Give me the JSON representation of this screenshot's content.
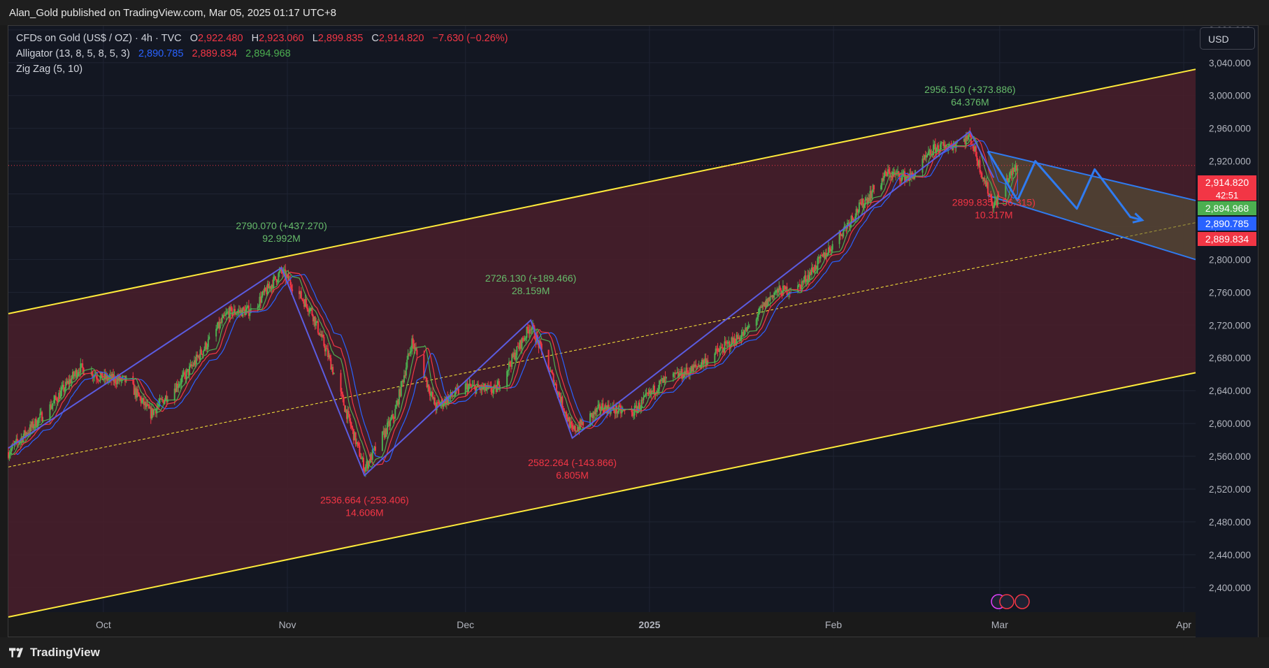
{
  "header": {
    "publisher": "Alan_Gold published on TradingView.com, Mar 05, 2025 01:17 UTC+8"
  },
  "legend": {
    "symbol": "CFDs on Gold (US$ / OZ) · 4h · TVC",
    "o_label": "O",
    "o_value": "2,922.480",
    "h_label": "H",
    "h_value": "2,923.060",
    "l_label": "L",
    "l_value": "2,899.835",
    "c_label": "C",
    "c_value": "2,914.820",
    "change": "−7.630 (−0.26%)",
    "alligator_label": "Alligator (13, 8, 5, 8, 5, 3)",
    "alligator_jaw": "2,890.785",
    "alligator_teeth": "2,889.834",
    "alligator_lips": "2,894.968",
    "zigzag_label": "Zig Zag (5, 10)"
  },
  "currency_button": "USD",
  "footer": {
    "brand": "TradingView"
  },
  "colors": {
    "background": "#131722",
    "channel_line": "#ffeb3b",
    "channel_fill": "#4a1f2a",
    "zigzag": "#5b5ce0",
    "projection": "#2f7bf0",
    "up_candle": "#4caf50",
    "down_candle": "#f23645",
    "jaw": "#2962ff",
    "teeth": "#f23645",
    "lips": "#4caf50"
  },
  "chart_data": {
    "type": "candlestick",
    "symbol": "CFDs on Gold (US$ / OZ)",
    "timeframe": "4h",
    "x_axis": {
      "labels": [
        "Oct",
        "Nov",
        "Dec",
        "2025",
        "Feb",
        "Mar",
        "Apr"
      ],
      "dates": [
        "2024-10-01",
        "2024-11-01",
        "2024-12-01",
        "2025-01-01",
        "2025-02-01",
        "2025-03-01",
        "2025-04-01"
      ],
      "range": [
        "2024-09-15",
        "2025-04-03"
      ]
    },
    "y_axis": {
      "ticks": [
        2400,
        2440,
        2480,
        2520,
        2560,
        2600,
        2640,
        2680,
        2720,
        2760,
        2800,
        2840,
        2880,
        2920,
        2960,
        3000,
        3040,
        3080
      ],
      "tick_labels": [
        "2,400.000",
        "2,440.000",
        "2,480.000",
        "2,520.000",
        "2,560.000",
        "2,600.000",
        "2,640.000",
        "2,680.000",
        "2,720.000",
        "2,760.000",
        "2,800.000",
        "2,840.000",
        "2,880.000",
        "2,920.000",
        "2,960.000",
        "3,000.000",
        "3,040.000",
        "3,080.000"
      ],
      "range": [
        2370,
        3085
      ]
    },
    "price_tags": [
      {
        "value": 2914.82,
        "label": "2,914.820",
        "sub": "42:51",
        "color": "#f23645"
      },
      {
        "value": 2894.968,
        "label": "2,894.968",
        "color": "#4caf50"
      },
      {
        "value": 2890.785,
        "label": "2,890.785",
        "color": "#2962ff"
      },
      {
        "value": 2889.834,
        "label": "2,889.834",
        "color": "#f23645"
      }
    ],
    "current_price": 2914.82,
    "zigzag": [
      {
        "date": "2024-09-15",
        "price": 2570
      },
      {
        "date": "2024-10-31",
        "price": 2790.07
      },
      {
        "date": "2024-11-14",
        "price": 2536.664
      },
      {
        "date": "2024-12-12",
        "price": 2726.13
      },
      {
        "date": "2024-12-19",
        "price": 2582.264
      },
      {
        "date": "2025-02-24",
        "price": 2956.15
      },
      {
        "date": "2025-02-28",
        "price": 2899.835
      }
    ],
    "pivot_labels": [
      {
        "date": "2024-10-31",
        "price": 2790.07,
        "text": "2790.070 (+437.270)",
        "volume": "92.992M",
        "kind": "high"
      },
      {
        "date": "2024-11-14",
        "price": 2536.664,
        "text": "2536.664 (-253.406)",
        "volume": "14.606M",
        "kind": "low"
      },
      {
        "date": "2024-12-12",
        "price": 2726.13,
        "text": "2726.130 (+189.466)",
        "volume": "28.159M",
        "kind": "high"
      },
      {
        "date": "2024-12-19",
        "price": 2582.264,
        "text": "2582.264 (-143.866)",
        "volume": "6.805M",
        "kind": "low"
      },
      {
        "date": "2025-02-24",
        "price": 2956.15,
        "text": "2956.150 (+373.886)",
        "volume": "64.376M",
        "kind": "high"
      },
      {
        "date": "2025-02-28",
        "price": 2899.835,
        "text": "2899.835 (-56.315)",
        "volume": "10.317M",
        "kind": "low"
      }
    ],
    "channel": {
      "upper": [
        {
          "date": "2024-09-15",
          "price": 2734
        },
        {
          "date": "2025-04-03",
          "price": 3032
        }
      ],
      "mid": [
        {
          "date": "2024-09-15",
          "price": 2547
        },
        {
          "date": "2025-04-03",
          "price": 2845
        }
      ],
      "lower": [
        {
          "date": "2024-09-15",
          "price": 2364
        },
        {
          "date": "2025-04-03",
          "price": 2662
        }
      ]
    },
    "descending_channel": {
      "upper": [
        {
          "date": "2025-02-27",
          "price": 2932
        },
        {
          "date": "2025-04-03",
          "price": 2872
        }
      ],
      "lower": [
        {
          "date": "2025-02-27",
          "price": 2878
        },
        {
          "date": "2025-04-03",
          "price": 2800
        }
      ]
    },
    "projection_path": [
      {
        "date": "2025-02-27",
        "price": 2932
      },
      {
        "date": "2025-03-04",
        "price": 2872
      },
      {
        "date": "2025-03-07",
        "price": 2920
      },
      {
        "date": "2025-03-14",
        "price": 2862
      },
      {
        "date": "2025-03-17",
        "price": 2910
      },
      {
        "date": "2025-03-23",
        "price": 2852
      },
      {
        "date": "2025-03-25",
        "price": 2848
      }
    ],
    "candle_anchors": [
      {
        "date": "2024-09-15",
        "price": 2565
      },
      {
        "date": "2024-09-22",
        "price": 2620
      },
      {
        "date": "2024-09-27",
        "price": 2668
      },
      {
        "date": "2024-10-01",
        "price": 2655
      },
      {
        "date": "2024-10-05",
        "price": 2652
      },
      {
        "date": "2024-10-09",
        "price": 2612
      },
      {
        "date": "2024-10-15",
        "price": 2660
      },
      {
        "date": "2024-10-22",
        "price": 2735
      },
      {
        "date": "2024-10-26",
        "price": 2738
      },
      {
        "date": "2024-10-31",
        "price": 2786
      },
      {
        "date": "2024-11-05",
        "price": 2738
      },
      {
        "date": "2024-11-08",
        "price": 2680
      },
      {
        "date": "2024-11-14",
        "price": 2545
      },
      {
        "date": "2024-11-19",
        "price": 2610
      },
      {
        "date": "2024-11-22",
        "price": 2700
      },
      {
        "date": "2024-11-26",
        "price": 2620
      },
      {
        "date": "2024-12-01",
        "price": 2645
      },
      {
        "date": "2024-12-06",
        "price": 2640
      },
      {
        "date": "2024-12-12",
        "price": 2720
      },
      {
        "date": "2024-12-16",
        "price": 2650
      },
      {
        "date": "2024-12-19",
        "price": 2590
      },
      {
        "date": "2024-12-24",
        "price": 2620
      },
      {
        "date": "2024-12-29",
        "price": 2612
      },
      {
        "date": "2025-01-03",
        "price": 2650
      },
      {
        "date": "2025-01-08",
        "price": 2665
      },
      {
        "date": "2025-01-13",
        "price": 2690
      },
      {
        "date": "2025-01-17",
        "price": 2710
      },
      {
        "date": "2025-01-22",
        "price": 2760
      },
      {
        "date": "2025-01-26",
        "price": 2765
      },
      {
        "date": "2025-01-31",
        "price": 2810
      },
      {
        "date": "2025-02-05",
        "price": 2860
      },
      {
        "date": "2025-02-10",
        "price": 2905
      },
      {
        "date": "2025-02-14",
        "price": 2900
      },
      {
        "date": "2025-02-18",
        "price": 2935
      },
      {
        "date": "2025-02-21",
        "price": 2940
      },
      {
        "date": "2025-02-24",
        "price": 2950
      },
      {
        "date": "2025-02-26",
        "price": 2905
      },
      {
        "date": "2025-02-28",
        "price": 2865
      },
      {
        "date": "2025-03-02",
        "price": 2895
      },
      {
        "date": "2025-03-04",
        "price": 2914.82
      }
    ]
  }
}
